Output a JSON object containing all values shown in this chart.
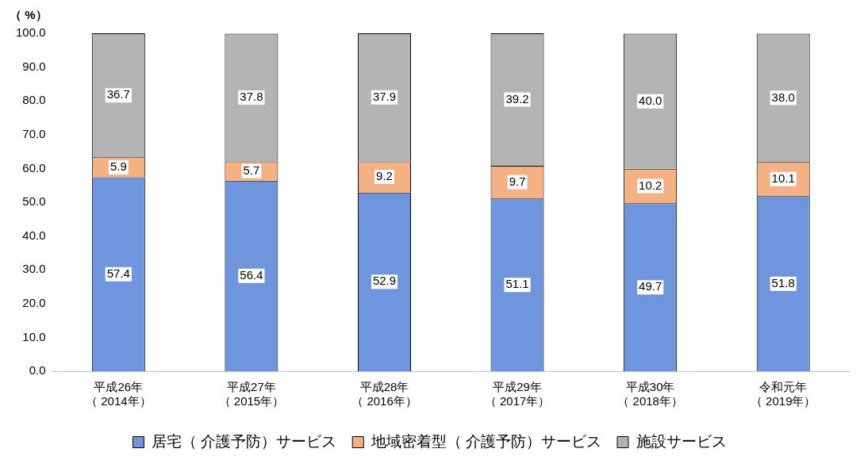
{
  "chart_data": {
    "type": "bar",
    "stacked": true,
    "ylabel": "（ %）",
    "categories": [
      "平成26年（ 2014年）",
      "平成27年（ 2015年）",
      "平成28年（ 2016年）",
      "平成29年（ 2017年）",
      "平成30年（ 2018年）",
      "令和元年（ 2019年）"
    ],
    "series": [
      {
        "name": "居宅（ 介護予防）サービス",
        "color": "#6f95dc",
        "values": [
          57.4,
          56.4,
          52.9,
          51.1,
          49.7,
          51.8
        ]
      },
      {
        "name": "地域密着型（ 介護予防）サービス",
        "color": "#f4b183",
        "values": [
          5.9,
          5.7,
          9.2,
          9.7,
          10.2,
          10.1
        ]
      },
      {
        "name": "施設サービス",
        "color": "#b4b4b4",
        "values": [
          36.7,
          37.8,
          37.9,
          39.2,
          40.0,
          38.0
        ]
      }
    ],
    "ylim": [
      0,
      100
    ],
    "yticks": [
      {
        "value": 0,
        "label": "0.0"
      },
      {
        "value": 10,
        "label": "10.0"
      },
      {
        "value": 20,
        "label": "20.0"
      },
      {
        "value": 30,
        "label": "30.0"
      },
      {
        "value": 40,
        "label": "40.0"
      },
      {
        "value": 50,
        "label": "50.0"
      },
      {
        "value": 60,
        "label": "60.0"
      },
      {
        "value": 70,
        "label": "70.0"
      },
      {
        "value": 80,
        "label": "80.0"
      },
      {
        "value": 90,
        "label": "90.0"
      },
      {
        "value": 100,
        "label": "100.0"
      }
    ],
    "grid": false,
    "legend": "bottom",
    "value_labels": [
      [
        "57.4",
        "56.4",
        "52.9",
        "51.1",
        "49.7",
        "51.8"
      ],
      [
        "5.9",
        "5.7",
        "9.2",
        "9.7",
        "10.2",
        "10.1"
      ],
      [
        "36.7",
        "37.8",
        "37.9",
        "39.2",
        "40.0",
        "38.0"
      ]
    ]
  }
}
